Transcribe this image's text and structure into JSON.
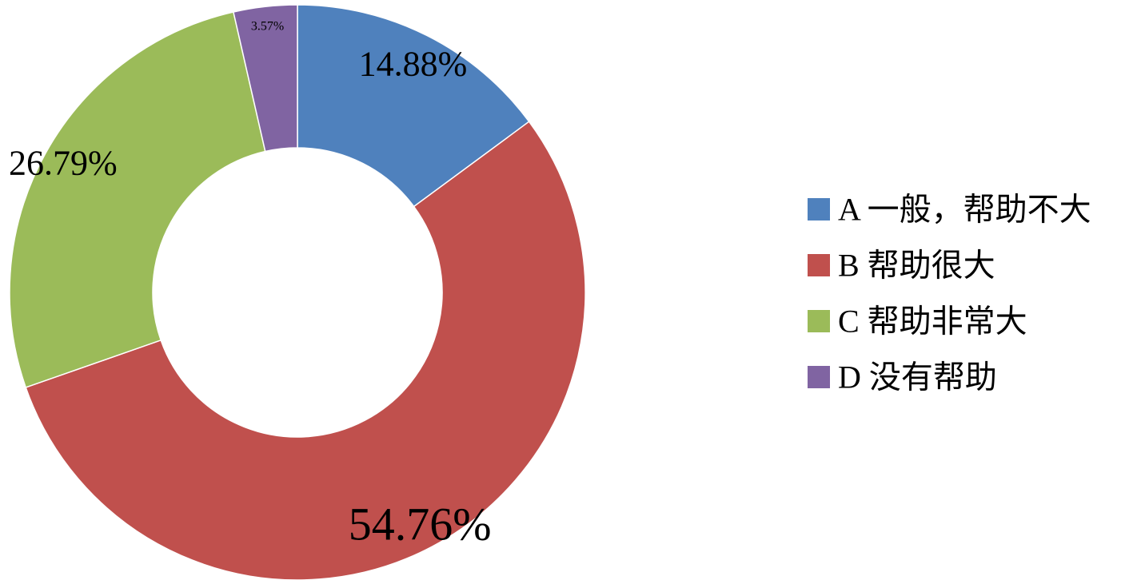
{
  "chart_data": {
    "type": "pie",
    "variant": "donut",
    "start": "12 o'clock, clockwise",
    "legend_position": "right",
    "title": "",
    "slices": [
      {
        "id": "A",
        "label": "A 一般，帮助不大",
        "value": 14.88,
        "value_label": "14.88%",
        "color": "#4F81BD"
      },
      {
        "id": "B",
        "label": "B 帮助很大",
        "value": 54.76,
        "value_label": "54.76%",
        "color": "#C0504D"
      },
      {
        "id": "C",
        "label": "C 帮助非常大",
        "value": 26.79,
        "value_label": "26.79%",
        "color": "#9BBB59"
      },
      {
        "id": "D",
        "label": "D 没有帮助",
        "value": 3.57,
        "value_label": "3.57%",
        "color": "#8064A2"
      }
    ]
  }
}
